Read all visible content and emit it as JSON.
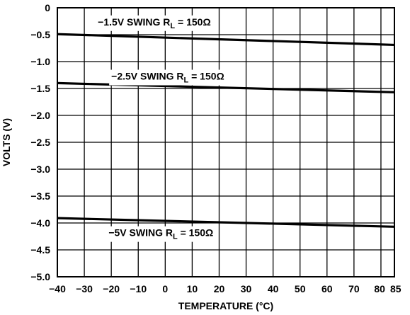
{
  "chart_data": {
    "type": "line",
    "title": "",
    "xlabel": "TEMPERATURE (°C)",
    "ylabel": "VOLTS (V)",
    "xlim": [
      -40,
      85
    ],
    "ylim": [
      -5.0,
      0
    ],
    "grid": true,
    "x_ticks": [
      {
        "value": -40,
        "label": "−40"
      },
      {
        "value": -30,
        "label": "−30"
      },
      {
        "value": -20,
        "label": "−20"
      },
      {
        "value": -10,
        "label": "−10"
      },
      {
        "value": 0,
        "label": "0"
      },
      {
        "value": 10,
        "label": "10"
      },
      {
        "value": 20,
        "label": "20"
      },
      {
        "value": 30,
        "label": "30"
      },
      {
        "value": 40,
        "label": "40"
      },
      {
        "value": 50,
        "label": "50"
      },
      {
        "value": 60,
        "label": "60"
      },
      {
        "value": 70,
        "label": "70"
      },
      {
        "value": 80,
        "label": "80"
      },
      {
        "value": 85,
        "label": "85"
      }
    ],
    "y_ticks": [
      {
        "value": 0,
        "label": "0"
      },
      {
        "value": -0.5,
        "label": "−0.5"
      },
      {
        "value": -1.0,
        "label": "−1.0"
      },
      {
        "value": -1.5,
        "label": "−1.5"
      },
      {
        "value": -2.0,
        "label": "−2.0"
      },
      {
        "value": -2.5,
        "label": "−2.5"
      },
      {
        "value": -3.0,
        "label": "−3.0"
      },
      {
        "value": -3.5,
        "label": "−3.5"
      },
      {
        "value": -4.0,
        "label": "−4.0"
      },
      {
        "value": -4.5,
        "label": "−4.5"
      },
      {
        "value": -5.0,
        "label": "−5.0"
      }
    ],
    "series": [
      {
        "label": {
          "prefix": "−1.5V SWING R",
          "sub": "L",
          "suffix": " = 150Ω"
        },
        "label_anchor": {
          "x": -25,
          "y": -0.26
        },
        "x": [
          -40,
          85
        ],
        "y": [
          -0.49,
          -0.69
        ]
      },
      {
        "label": {
          "prefix": "−2.5V SWING R",
          "sub": "L",
          "suffix": " = 150Ω"
        },
        "label_anchor": {
          "x": -20,
          "y": -1.27
        },
        "x": [
          -40,
          85
        ],
        "y": [
          -1.4,
          -1.57
        ]
      },
      {
        "label": {
          "prefix": "−5V SWING R",
          "sub": "L",
          "suffix": " = 150Ω"
        },
        "label_anchor": {
          "x": -21,
          "y": -4.18
        },
        "x": [
          -40,
          85
        ],
        "y": [
          -3.91,
          -4.07
        ]
      }
    ]
  }
}
